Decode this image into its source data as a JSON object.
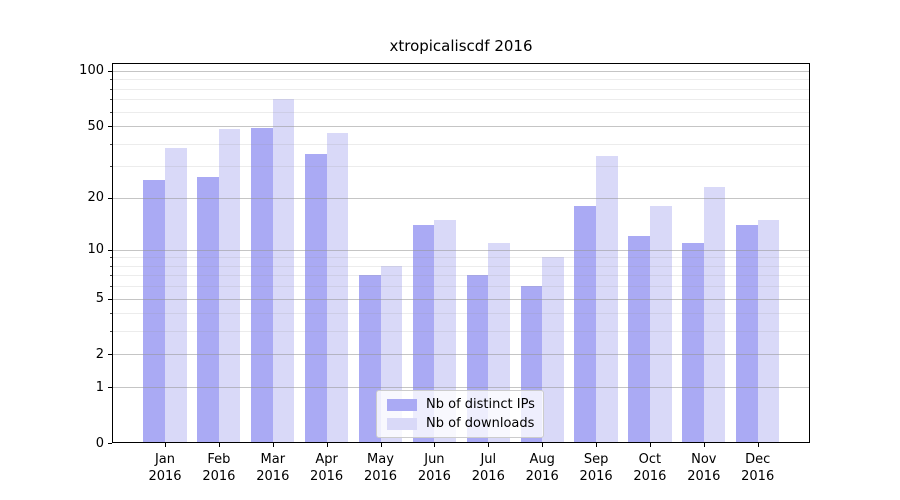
{
  "title": "xtropicaliscdf 2016",
  "chart_data": {
    "type": "bar",
    "title": "xtropicaliscdf 2016",
    "categories": [
      "Jan",
      "Feb",
      "Mar",
      "Apr",
      "May",
      "Jun",
      "Jul",
      "Aug",
      "Sep",
      "Oct",
      "Nov",
      "Dec"
    ],
    "category_year": "2016",
    "series": [
      {
        "name": "Nb of distinct IPs",
        "color": "#aaaaf4",
        "values": [
          25,
          26,
          49,
          35,
          7,
          14,
          7,
          6,
          18,
          12,
          11,
          14
        ]
      },
      {
        "name": "Nb of downloads",
        "color": "#d9d9f8",
        "values": [
          38,
          48,
          70,
          46,
          8,
          15,
          11,
          9,
          34,
          18,
          23,
          15
        ]
      }
    ],
    "xlabel": "",
    "ylabel": "",
    "yscale": "log1p",
    "ylim": [
      0,
      110.4
    ],
    "yticks": [
      0,
      1,
      2,
      5,
      10,
      20,
      50,
      100
    ],
    "ytick_labels": [
      "0",
      "1",
      "2",
      "5",
      "10",
      "20",
      "50",
      "100"
    ],
    "yticks_minor": [
      3,
      4,
      6,
      7,
      8,
      9,
      30,
      40,
      60,
      70,
      80,
      90
    ],
    "grid": true,
    "grid_above_bars": true,
    "legend_position": "lower center",
    "colors": {
      "bar_dark": "#aaaaf4",
      "bar_light": "#d9d9f8",
      "grid_major": "#cbcbcb",
      "grid_minor": "#eeeeee",
      "axis": "#000000",
      "legend_border": "#cccccc"
    }
  }
}
